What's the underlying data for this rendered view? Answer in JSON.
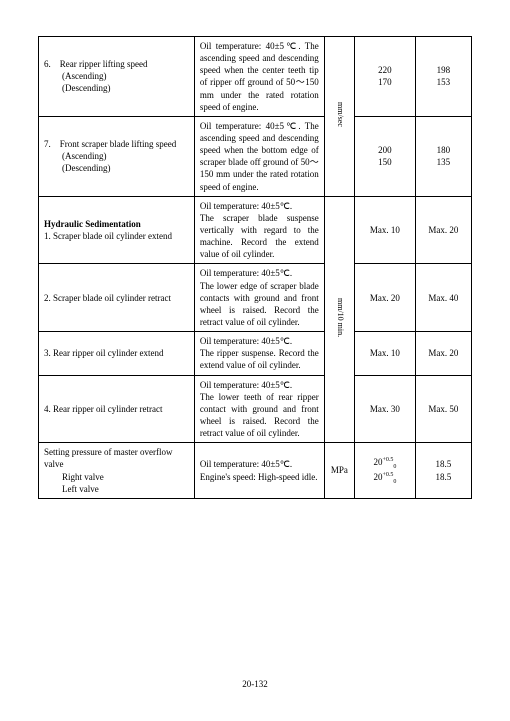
{
  "footer": "20-132",
  "rows": {
    "r1": {
      "label": "6.　Rear ripper lifting speed\n　　(Ascending)\n　　(Descending)",
      "desc": "Oil temperature: 40±5℃. The ascending speed and descending speed when the center teeth tip of ripper off ground of 50～150 mm under the rated rotation speed of engine.",
      "v1a": "220",
      "v1b": "170",
      "v2a": "198",
      "v2b": "153"
    },
    "r2": {
      "label": "7.　Front scraper blade lifting speed\n　　(Ascending)\n　　(Descending)",
      "desc": "Oil temperature: 40±5℃. The ascending speed and descending speed when the bottom edge of scraper blade off ground of 50～150 mm under the rated rotation speed of engine.",
      "v1a": "200",
      "v1b": "150",
      "v2a": "180",
      "v2b": "135"
    },
    "unit12": "mm/sec",
    "r3": {
      "title": "Hydraulic Sedimentation",
      "label": "1. Scraper blade oil cylinder extend",
      "desc": "Oil temperature: 40±5℃.\nThe scraper blade suspense vertically with regard to the machine. Record the extend value of oil cylinder.",
      "v1": "Max. 10",
      "v2": "Max. 20"
    },
    "r4": {
      "label": "2. Scraper blade oil cylinder retract",
      "desc": "Oil temperature: 40±5℃.\nThe lower edge of scraper blade contacts with ground and front wheel is raised. Record the retract value of oil cylinder.",
      "v1": "Max. 20",
      "v2": "Max. 40"
    },
    "r5": {
      "label": "3. Rear ripper oil cylinder extend",
      "desc": "Oil temperature: 40±5℃.\nThe ripper suspense. Record the extend value of oil cylinder.",
      "v1": "Max. 10",
      "v2": "Max. 20"
    },
    "r6": {
      "label": "4. Rear ripper oil cylinder retract",
      "desc": "Oil temperature: 40±5℃.\nThe lower teeth of rear ripper contact with ground and front wheel is raised. Record the retract value of oil cylinder.",
      "v1": "Max. 30",
      "v2": "Max. 50"
    },
    "unit36": "mm/10 min.",
    "r7": {
      "label": "Setting pressure of master overflow valve\n　　Right valve\n　　Left valve",
      "desc": "Oil temperature: 40±5℃.\nEngine's speed: High-speed idle.",
      "unit": "MPa",
      "v2a": "18.5",
      "v2b": "18.5"
    }
  }
}
